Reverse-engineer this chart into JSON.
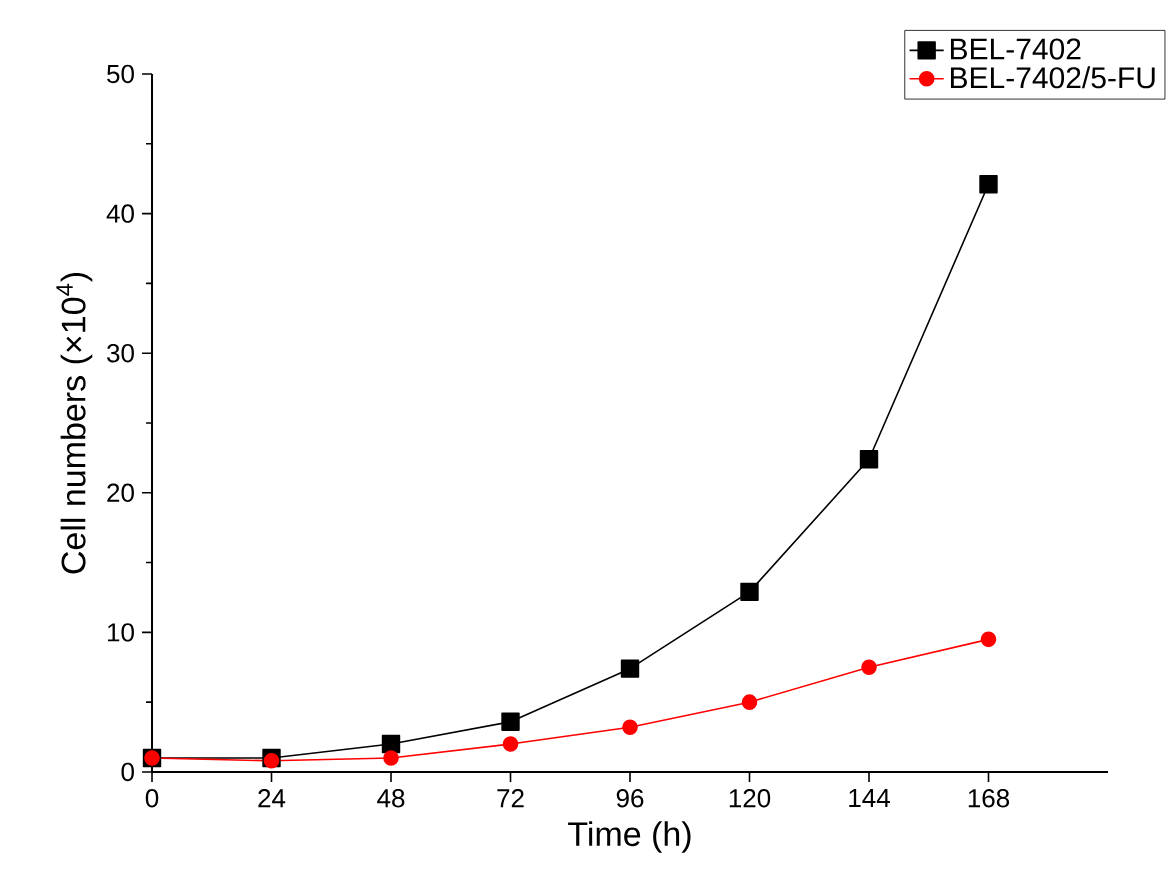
{
  "chart_data": {
    "type": "line",
    "xlabel": "Time (h)",
    "ylabel": "Cell numbers (×10$^{4}$)",
    "x": [
      0,
      24,
      48,
      72,
      96,
      120,
      144,
      168
    ],
    "series": [
      {
        "name": "BEL-7402",
        "color": "#000000",
        "marker": "square",
        "values": [
          1.0,
          1.0,
          2.0,
          3.6,
          7.4,
          12.9,
          22.4,
          42.1
        ]
      },
      {
        "name": "BEL-7402/5-FU",
        "color": "#ff0000",
        "marker": "circle",
        "values": [
          1.0,
          0.8,
          1.0,
          2.0,
          3.2,
          5.0,
          7.5,
          9.5
        ]
      }
    ],
    "xlim": [
      0,
      192
    ],
    "ylim": [
      0,
      50
    ],
    "xticks": [
      0,
      24,
      48,
      72,
      96,
      120,
      144,
      168
    ],
    "yticks": [
      0,
      10,
      20,
      30,
      40,
      50
    ],
    "grid": false,
    "legend": "top right",
    "line_style": "solid"
  }
}
